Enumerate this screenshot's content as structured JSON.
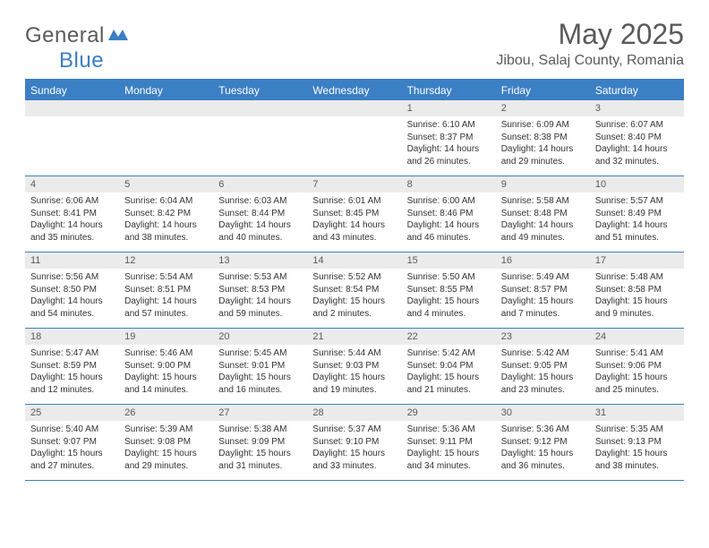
{
  "logo": {
    "general": "General",
    "blue": "Blue"
  },
  "title": "May 2025",
  "location": "Jibou, Salaj County, Romania",
  "colors": {
    "accent": "#3b7fc4",
    "cell_header_bg": "#ebebeb",
    "text_muted": "#5a5a5a",
    "text": "#333333",
    "bg": "#ffffff"
  },
  "day_names": [
    "Sunday",
    "Monday",
    "Tuesday",
    "Wednesday",
    "Thursday",
    "Friday",
    "Saturday"
  ],
  "weeks": [
    [
      null,
      null,
      null,
      null,
      {
        "n": "1",
        "sunrise": "6:10 AM",
        "sunset": "8:37 PM",
        "daylight": "14 hours and 26 minutes."
      },
      {
        "n": "2",
        "sunrise": "6:09 AM",
        "sunset": "8:38 PM",
        "daylight": "14 hours and 29 minutes."
      },
      {
        "n": "3",
        "sunrise": "6:07 AM",
        "sunset": "8:40 PM",
        "daylight": "14 hours and 32 minutes."
      }
    ],
    [
      {
        "n": "4",
        "sunrise": "6:06 AM",
        "sunset": "8:41 PM",
        "daylight": "14 hours and 35 minutes."
      },
      {
        "n": "5",
        "sunrise": "6:04 AM",
        "sunset": "8:42 PM",
        "daylight": "14 hours and 38 minutes."
      },
      {
        "n": "6",
        "sunrise": "6:03 AM",
        "sunset": "8:44 PM",
        "daylight": "14 hours and 40 minutes."
      },
      {
        "n": "7",
        "sunrise": "6:01 AM",
        "sunset": "8:45 PM",
        "daylight": "14 hours and 43 minutes."
      },
      {
        "n": "8",
        "sunrise": "6:00 AM",
        "sunset": "8:46 PM",
        "daylight": "14 hours and 46 minutes."
      },
      {
        "n": "9",
        "sunrise": "5:58 AM",
        "sunset": "8:48 PM",
        "daylight": "14 hours and 49 minutes."
      },
      {
        "n": "10",
        "sunrise": "5:57 AM",
        "sunset": "8:49 PM",
        "daylight": "14 hours and 51 minutes."
      }
    ],
    [
      {
        "n": "11",
        "sunrise": "5:56 AM",
        "sunset": "8:50 PM",
        "daylight": "14 hours and 54 minutes."
      },
      {
        "n": "12",
        "sunrise": "5:54 AM",
        "sunset": "8:51 PM",
        "daylight": "14 hours and 57 minutes."
      },
      {
        "n": "13",
        "sunrise": "5:53 AM",
        "sunset": "8:53 PM",
        "daylight": "14 hours and 59 minutes."
      },
      {
        "n": "14",
        "sunrise": "5:52 AM",
        "sunset": "8:54 PM",
        "daylight": "15 hours and 2 minutes."
      },
      {
        "n": "15",
        "sunrise": "5:50 AM",
        "sunset": "8:55 PM",
        "daylight": "15 hours and 4 minutes."
      },
      {
        "n": "16",
        "sunrise": "5:49 AM",
        "sunset": "8:57 PM",
        "daylight": "15 hours and 7 minutes."
      },
      {
        "n": "17",
        "sunrise": "5:48 AM",
        "sunset": "8:58 PM",
        "daylight": "15 hours and 9 minutes."
      }
    ],
    [
      {
        "n": "18",
        "sunrise": "5:47 AM",
        "sunset": "8:59 PM",
        "daylight": "15 hours and 12 minutes."
      },
      {
        "n": "19",
        "sunrise": "5:46 AM",
        "sunset": "9:00 PM",
        "daylight": "15 hours and 14 minutes."
      },
      {
        "n": "20",
        "sunrise": "5:45 AM",
        "sunset": "9:01 PM",
        "daylight": "15 hours and 16 minutes."
      },
      {
        "n": "21",
        "sunrise": "5:44 AM",
        "sunset": "9:03 PM",
        "daylight": "15 hours and 19 minutes."
      },
      {
        "n": "22",
        "sunrise": "5:42 AM",
        "sunset": "9:04 PM",
        "daylight": "15 hours and 21 minutes."
      },
      {
        "n": "23",
        "sunrise": "5:42 AM",
        "sunset": "9:05 PM",
        "daylight": "15 hours and 23 minutes."
      },
      {
        "n": "24",
        "sunrise": "5:41 AM",
        "sunset": "9:06 PM",
        "daylight": "15 hours and 25 minutes."
      }
    ],
    [
      {
        "n": "25",
        "sunrise": "5:40 AM",
        "sunset": "9:07 PM",
        "daylight": "15 hours and 27 minutes."
      },
      {
        "n": "26",
        "sunrise": "5:39 AM",
        "sunset": "9:08 PM",
        "daylight": "15 hours and 29 minutes."
      },
      {
        "n": "27",
        "sunrise": "5:38 AM",
        "sunset": "9:09 PM",
        "daylight": "15 hours and 31 minutes."
      },
      {
        "n": "28",
        "sunrise": "5:37 AM",
        "sunset": "9:10 PM",
        "daylight": "15 hours and 33 minutes."
      },
      {
        "n": "29",
        "sunrise": "5:36 AM",
        "sunset": "9:11 PM",
        "daylight": "15 hours and 34 minutes."
      },
      {
        "n": "30",
        "sunrise": "5:36 AM",
        "sunset": "9:12 PM",
        "daylight": "15 hours and 36 minutes."
      },
      {
        "n": "31",
        "sunrise": "5:35 AM",
        "sunset": "9:13 PM",
        "daylight": "15 hours and 38 minutes."
      }
    ]
  ],
  "labels": {
    "sunrise_prefix": "Sunrise: ",
    "sunset_prefix": "Sunset: ",
    "daylight_prefix": "Daylight: "
  }
}
